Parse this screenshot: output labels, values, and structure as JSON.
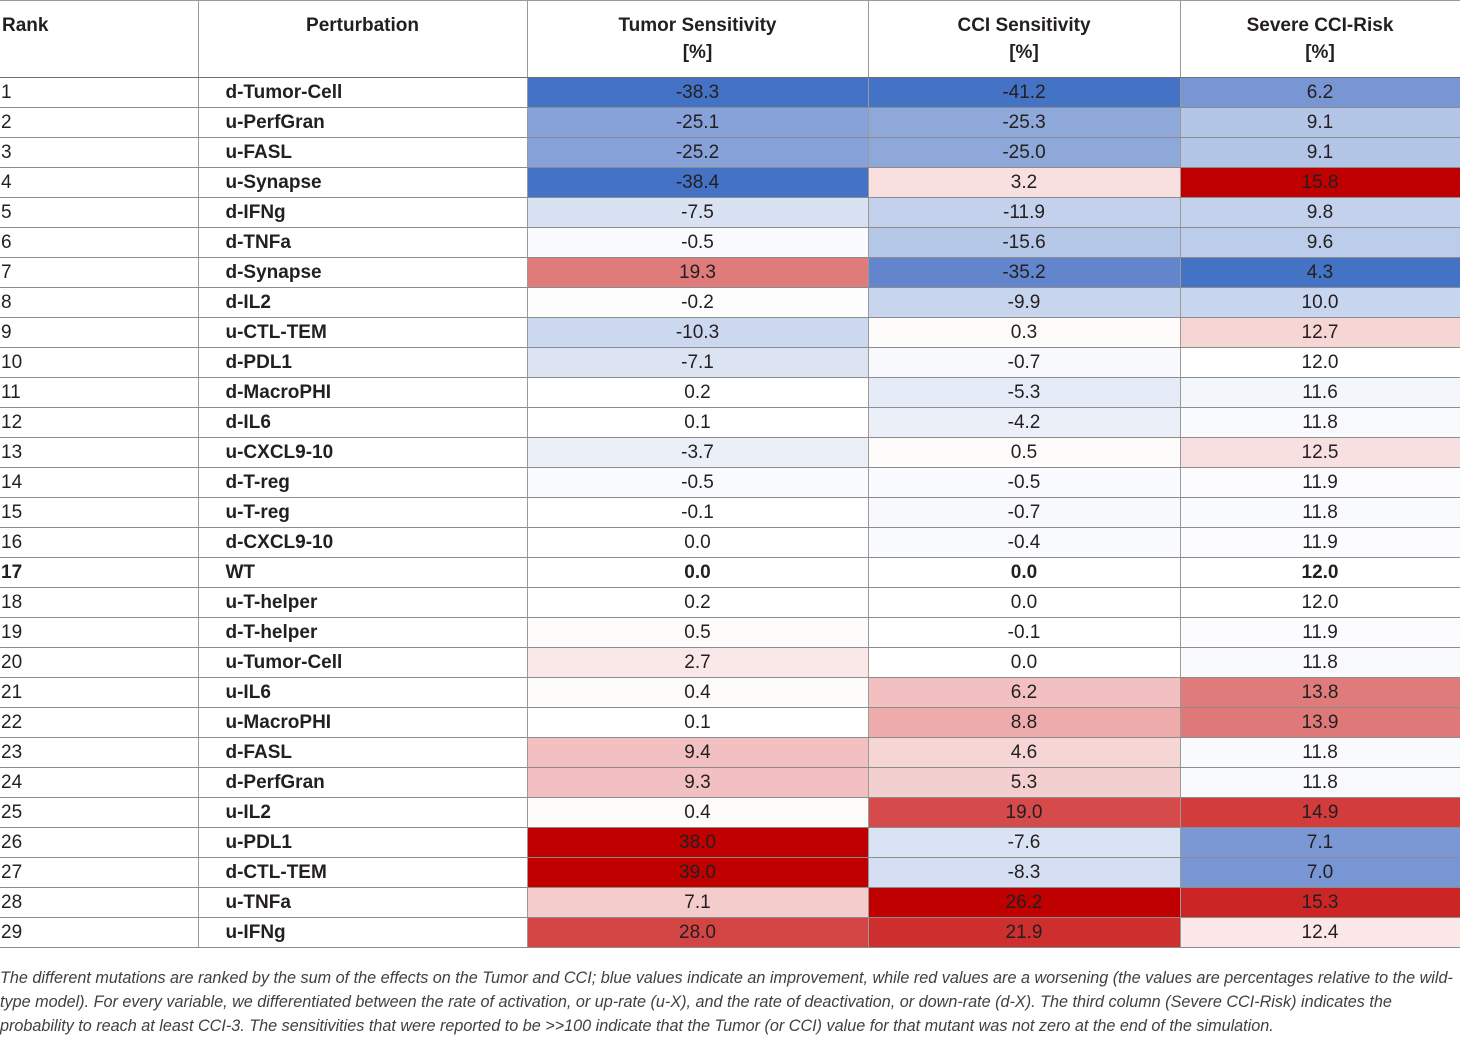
{
  "header": {
    "rank": "Rank",
    "perturbation": "Perturbation",
    "tumor": {
      "label": "Tumor Sensitivity",
      "unit": "[%]"
    },
    "cci": {
      "label": "CCI Sensitivity",
      "unit": "[%]"
    },
    "risk": {
      "label": "Severe CCI-Risk",
      "unit": "[%]"
    }
  },
  "rows": [
    {
      "rank": "1",
      "name": "d-Tumor-Cell",
      "tumor": "-38.3",
      "cci": "-41.2",
      "risk": "6.2",
      "tumor_color": "#4472c4",
      "cci_color": "#4472c4",
      "risk_color": "#7896d3"
    },
    {
      "rank": "2",
      "name": "u-PerfGran",
      "tumor": "-25.1",
      "cci": "-25.3",
      "risk": "9.1",
      "tumor_color": "#87a2d8",
      "cci_color": "#8ea8da",
      "risk_color": "#b4c6e7"
    },
    {
      "rank": "3",
      "name": "u-FASL",
      "tumor": "-25.2",
      "cci": "-25.0",
      "risk": "9.1",
      "tumor_color": "#87a2d8",
      "cci_color": "#8ea8da",
      "risk_color": "#b4c6e7"
    },
    {
      "rank": "4",
      "name": "u-Synapse",
      "tumor": "-38.4",
      "cci": "3.2",
      "risk": "15.8",
      "tumor_color": "#4472c4",
      "cci_color": "#f8e0e0",
      "risk_color": "#c00000"
    },
    {
      "rank": "5",
      "name": "d-IFNg",
      "tumor": "-7.5",
      "cci": "-11.9",
      "risk": "9.8",
      "tumor_color": "#d9e2f3",
      "cci_color": "#c3d1ec",
      "risk_color": "#c3d1ec"
    },
    {
      "rank": "6",
      "name": "d-TNFa",
      "tumor": "-0.5",
      "cci": "-15.6",
      "risk": "9.6",
      "tumor_color": "#fafbfe",
      "cci_color": "#b6c8e8",
      "risk_color": "#bccdeb"
    },
    {
      "rank": "7",
      "name": "d-Synapse",
      "tumor": "19.3",
      "cci": "-35.2",
      "risk": "4.3",
      "tumor_color": "#e07b7b",
      "cci_color": "#6385cd",
      "risk_color": "#4472c4"
    },
    {
      "rank": "8",
      "name": "d-IL2",
      "tumor": "-0.2",
      "cci": "-9.9",
      "risk": "10.0",
      "tumor_color": "#fdfdfe",
      "cci_color": "#c8d5ee",
      "risk_color": "#c8d5ee"
    },
    {
      "rank": "9",
      "name": "u-CTL-TEM",
      "tumor": "-10.3",
      "cci": "0.3",
      "risk": "12.7",
      "tumor_color": "#ccd8ef",
      "cci_color": "#fefbfb",
      "risk_color": "#f6d5d5"
    },
    {
      "rank": "10",
      "name": "d-PDL1",
      "tumor": "-7.1",
      "cci": "-0.7",
      "risk": "12.0",
      "tumor_color": "#dce4f4",
      "cci_color": "#f8f9fd",
      "risk_color": "#ffffff"
    },
    {
      "rank": "11",
      "name": "d-MacroPHI",
      "tumor": "0.2",
      "cci": "-5.3",
      "risk": "11.6",
      "tumor_color": "#ffffff",
      "cci_color": "#e6ecf7",
      "risk_color": "#f3f6fb"
    },
    {
      "rank": "12",
      "name": "d-IL6",
      "tumor": "0.1",
      "cci": "-4.2",
      "risk": "11.8",
      "tumor_color": "#ffffff",
      "cci_color": "#eaeff8",
      "risk_color": "#f9fafd"
    },
    {
      "rank": "13",
      "name": "u-CXCL9-10",
      "tumor": "-3.7",
      "cci": "0.5",
      "risk": "12.5",
      "tumor_color": "#eaeff8",
      "cci_color": "#fefbfb",
      "risk_color": "#f8e0e0"
    },
    {
      "rank": "14",
      "name": "d-T-reg",
      "tumor": "-0.5",
      "cci": "-0.5",
      "risk": "11.9",
      "tumor_color": "#fafbfe",
      "cci_color": "#fafbfe",
      "risk_color": "#fcfcfe"
    },
    {
      "rank": "15",
      "name": "u-T-reg",
      "tumor": "-0.1",
      "cci": "-0.7",
      "risk": "11.8",
      "tumor_color": "#ffffff",
      "cci_color": "#f8f9fd",
      "risk_color": "#f9fafd"
    },
    {
      "rank": "16",
      "name": "d-CXCL9-10",
      "tumor": "0.0",
      "cci": "-0.4",
      "risk": "11.9",
      "tumor_color": "#ffffff",
      "cci_color": "#fafbfe",
      "risk_color": "#fcfcfe"
    },
    {
      "rank": "17",
      "name": "WT",
      "tumor": "0.0",
      "cci": "0.0",
      "risk": "12.0",
      "tumor_color": "#ffffff",
      "cci_color": "#ffffff",
      "risk_color": "#ffffff",
      "bold": true
    },
    {
      "rank": "18",
      "name": "u-T-helper",
      "tumor": "0.2",
      "cci": "0.0",
      "risk": "12.0",
      "tumor_color": "#ffffff",
      "cci_color": "#ffffff",
      "risk_color": "#ffffff"
    },
    {
      "rank": "19",
      "name": "d-T-helper",
      "tumor": "0.5",
      "cci": "-0.1",
      "risk": "11.9",
      "tumor_color": "#fefbfb",
      "cci_color": "#ffffff",
      "risk_color": "#fcfcfe"
    },
    {
      "rank": "20",
      "name": "u-Tumor-Cell",
      "tumor": "2.7",
      "cci": "0.0",
      "risk": "11.8",
      "tumor_color": "#fae8e8",
      "cci_color": "#ffffff",
      "risk_color": "#f9fafd"
    },
    {
      "rank": "21",
      "name": "u-IL6",
      "tumor": "0.4",
      "cci": "6.2",
      "risk": "13.8",
      "tumor_color": "#fefbfb",
      "cci_color": "#f2c0c0",
      "risk_color": "#e07b7b"
    },
    {
      "rank": "22",
      "name": "u-MacroPHI",
      "tumor": "0.1",
      "cci": "8.8",
      "risk": "13.9",
      "tumor_color": "#ffffff",
      "cci_color": "#edabab",
      "risk_color": "#df7878"
    },
    {
      "rank": "23",
      "name": "d-FASL",
      "tumor": "9.4",
      "cci": "4.6",
      "risk": "11.8",
      "tumor_color": "#f2c0c0",
      "cci_color": "#f6d5d5",
      "risk_color": "#f9fafd"
    },
    {
      "rank": "24",
      "name": "d-PerfGran",
      "tumor": "9.3",
      "cci": "5.3",
      "risk": "11.8",
      "tumor_color": "#f2c0c0",
      "cci_color": "#f4cfcf",
      "risk_color": "#f9fafd"
    },
    {
      "rank": "25",
      "name": "u-IL2",
      "tumor": "0.4",
      "cci": "19.0",
      "risk": "14.9",
      "tumor_color": "#fefbfb",
      "cci_color": "#d54a4a",
      "risk_color": "#d33c3c"
    },
    {
      "rank": "26",
      "name": "u-PDL1",
      "tumor": "38.0",
      "cci": "-7.6",
      "risk": "7.1",
      "tumor_color": "#c00000",
      "cci_color": "#dae3f3",
      "risk_color": "#7a98d4"
    },
    {
      "rank": "27",
      "name": "d-CTL-TEM",
      "tumor": "39.0",
      "cci": "-8.3",
      "risk": "7.0",
      "tumor_color": "#c00000",
      "cci_color": "#d5def2",
      "risk_color": "#7896d3"
    },
    {
      "rank": "28",
      "name": "u-TNFa",
      "tumor": "7.1",
      "cci": "26.2",
      "risk": "15.3",
      "tumor_color": "#f4cccc",
      "cci_color": "#c00000",
      "risk_color": "#cb2525"
    },
    {
      "rank": "29",
      "name": "u-IFNg",
      "tumor": "28.0",
      "cci": "21.9",
      "risk": "12.4",
      "tumor_color": "#d34444",
      "cci_color": "#cd2e2e",
      "risk_color": "#fbe7e7"
    }
  ],
  "footnote": "The different mutations are ranked by the sum of the effects on the Tumor and CCI; blue values indicate an improvement, while red values are a worsening (the values are percentages relative to the wild-type model). For every variable, we differentiated between the rate of activation, or up-rate (u-X), and the rate of deactivation, or down-rate (d-X). The third column (Severe CCI-Risk) indicates the probability to reach at least CCI-3. The sensitivities that were reported to be >>100 indicate that the Tumor (or CCI) value for that mutant was not zero at the end of the simulation."
}
